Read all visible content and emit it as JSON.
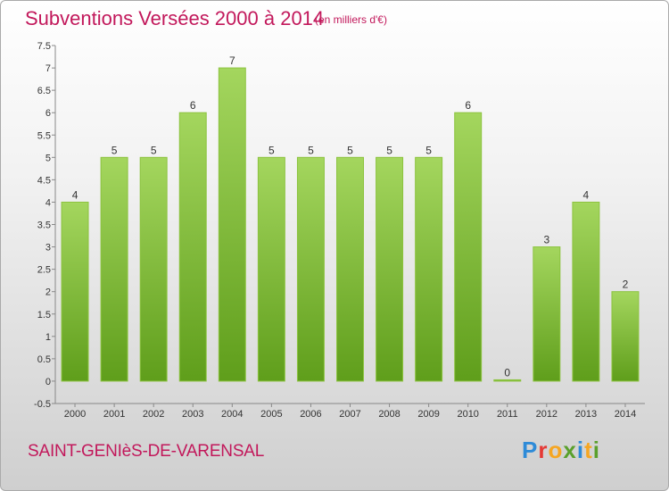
{
  "header": {
    "title": "Subventions Versées 2000 à 2014",
    "subtitle": "(en milliers d'€)"
  },
  "footer": {
    "commune": "SAINT-GENIèS-DE-VARENSAL",
    "logo_letters": [
      "P",
      "r",
      "o",
      "x",
      "i",
      "t",
      "i"
    ],
    "logo_colors": [
      "#2e8bd8",
      "#e53935",
      "#f5a623",
      "#5aa02c",
      "#2e8bd8",
      "#f5a623",
      "#5aa02c"
    ]
  },
  "colors": {
    "title": "#c2185b",
    "bar_light": "#a4d65e",
    "bar_dark": "#5f9e1b",
    "axis_text": "#333333"
  },
  "chart_data": {
    "type": "bar",
    "categories": [
      "2000",
      "2001",
      "2002",
      "2003",
      "2004",
      "2005",
      "2006",
      "2007",
      "2008",
      "2009",
      "2010",
      "2011",
      "2012",
      "2013",
      "2014"
    ],
    "values": [
      4,
      5,
      5,
      6,
      7,
      5,
      5,
      5,
      5,
      5,
      6,
      0,
      3,
      4,
      2
    ],
    "data_labels": [
      "4",
      "5",
      "5",
      "6",
      "7",
      "5",
      "5",
      "5",
      "5",
      "5",
      "6",
      "0",
      "3",
      "4",
      "2"
    ],
    "yticks": [
      "-0.5",
      "0",
      "0.5",
      "1",
      "1.5",
      "2",
      "2.5",
      "3",
      "3.5",
      "4",
      "4.5",
      "5",
      "5.5",
      "6",
      "6.5",
      "7",
      "7.5"
    ],
    "ylim": [
      -0.5,
      7.5
    ],
    "title": "Subventions Versées 2000 à 2014",
    "xlabel": "",
    "ylabel": "",
    "grid": false
  }
}
